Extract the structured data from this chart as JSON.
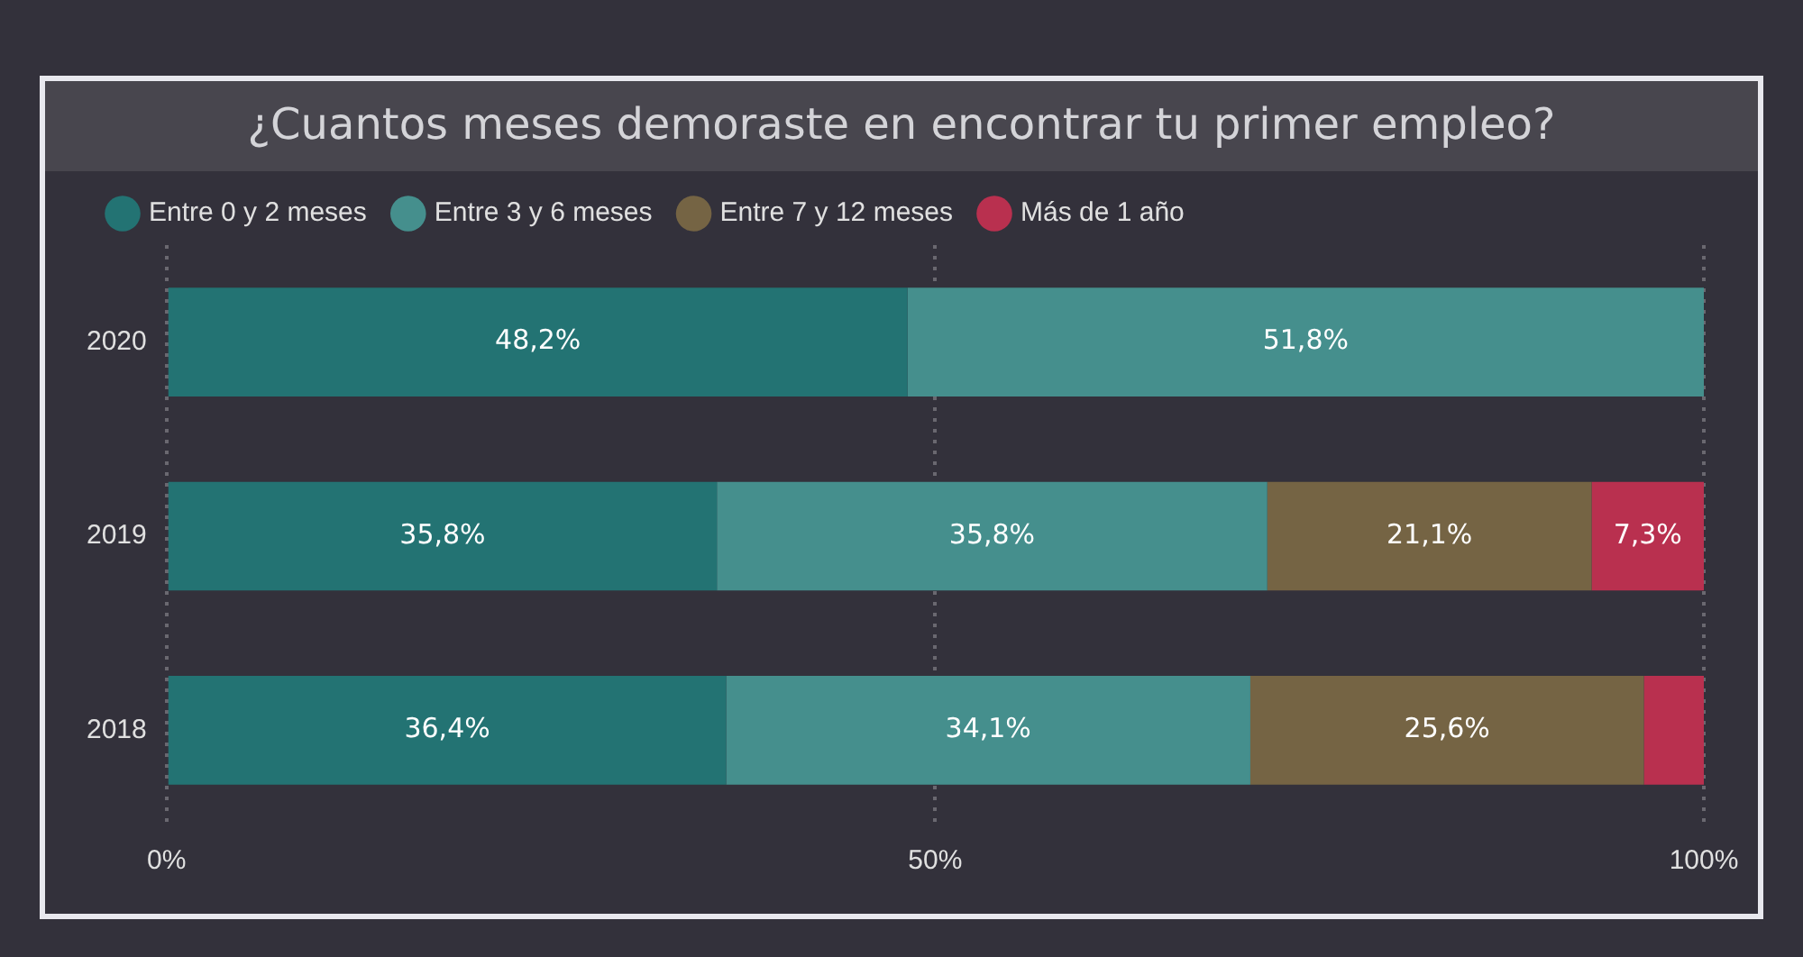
{
  "chart_data": {
    "type": "bar",
    "orientation": "horizontal",
    "stacked": true,
    "title": "¿Cuantos meses demoraste en encontrar tu primer empleo?",
    "categories": [
      "2020",
      "2019",
      "2018"
    ],
    "series": [
      {
        "name": "Entre 0 y 2 meses",
        "color": "#237373",
        "values": [
          48.2,
          35.8,
          36.4
        ],
        "value_labels": [
          "48,2%",
          "35,8%",
          "36,4%"
        ]
      },
      {
        "name": "Entre 3 y 6 meses",
        "color": "#458f8d",
        "values": [
          51.8,
          35.8,
          34.1
        ],
        "value_labels": [
          "51,8%",
          "35,8%",
          "34,1%"
        ]
      },
      {
        "name": "Entre 7 y 12 meses",
        "color": "#756444",
        "values": [
          null,
          21.1,
          25.6
        ],
        "value_labels": [
          null,
          "21,1%",
          "25,6%"
        ]
      },
      {
        "name": "Más de 1 año",
        "color": "#b9304f",
        "values": [
          null,
          7.3,
          3.9
        ],
        "value_labels": [
          null,
          "7,3%",
          null
        ]
      }
    ],
    "xlim": [
      0,
      100
    ],
    "xticks": [
      {
        "value": 0,
        "label": "0%"
      },
      {
        "value": 50,
        "label": "50%"
      },
      {
        "value": 100,
        "label": "100%"
      }
    ],
    "grid": "x",
    "legend": "top left"
  }
}
